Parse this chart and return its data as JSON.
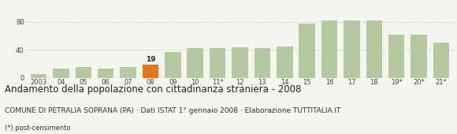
{
  "categories": [
    "2003",
    "04",
    "05",
    "06",
    "07",
    "08",
    "09",
    "10",
    "11*",
    "12",
    "13",
    "14",
    "15",
    "16",
    "17",
    "18",
    "19*",
    "20*",
    "21*"
  ],
  "values": [
    5,
    13,
    15,
    13,
    15,
    19,
    37,
    42,
    42,
    44,
    42,
    45,
    78,
    82,
    82,
    82,
    62,
    62,
    50
  ],
  "highlight_index": 5,
  "bar_color_normal": "#b5c9a1",
  "bar_color_highlight": "#e07820",
  "annotation_label": "19",
  "title": "Andamento della popolazione con cittadinanza straniera - 2008",
  "subtitle": "COMUNE DI PETRALIA SOPRANA (PA) · Dati ISTAT 1° gennaio 2008 · Elaborazione TUTTITALIA.IT",
  "footnote": "(*) post-censimento",
  "ylim": [
    0,
    100
  ],
  "yticks": [
    0,
    40,
    80
  ],
  "grid_color": "#cccccc",
  "background_color": "#f5f5f0",
  "title_fontsize": 8.5,
  "subtitle_fontsize": 6.5,
  "footnote_fontsize": 6.0,
  "tick_fontsize": 6.0,
  "annotation_fontsize": 6.5
}
